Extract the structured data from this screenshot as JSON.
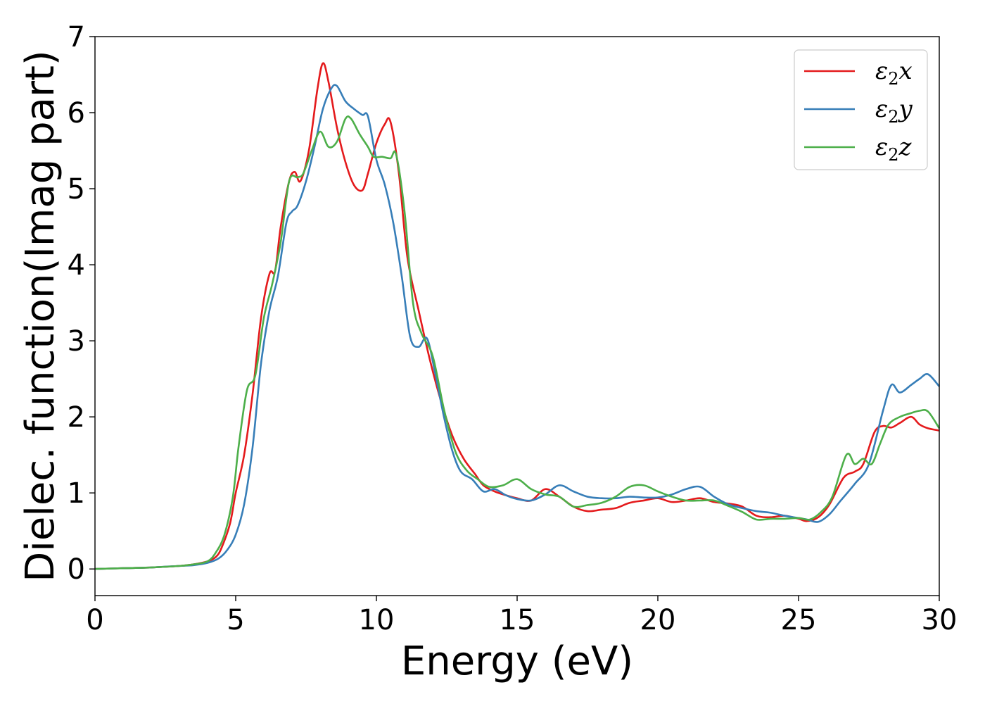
{
  "chart_data": {
    "type": "line",
    "title": "",
    "xlabel": "Energy (eV)",
    "ylabel": "Dielec. function(Imag part)",
    "xlim": [
      0,
      30
    ],
    "ylim": [
      -0.35,
      7
    ],
    "xticks": [
      0,
      5,
      10,
      15,
      20,
      25,
      30
    ],
    "yticks": [
      0,
      1,
      2,
      3,
      4,
      5,
      6,
      7
    ],
    "xtick_labels": [
      "0",
      "5",
      "10",
      "15",
      "20",
      "25",
      "30"
    ],
    "ytick_labels": [
      "0",
      "1",
      "2",
      "3",
      "4",
      "5",
      "6",
      "7"
    ],
    "grid": false,
    "legend_position": "top-right",
    "series": [
      {
        "name": "ε₂x",
        "label_base": "ε",
        "label_sub": "2",
        "label_var": "x",
        "color": "#e41a1c",
        "x": [
          0,
          1,
          2,
          3,
          3.5,
          4,
          4.3,
          4.5,
          4.8,
          5,
          5.3,
          5.6,
          5.9,
          6.2,
          6.4,
          6.6,
          6.9,
          7.1,
          7.3,
          7.6,
          7.9,
          8.1,
          8.3,
          8.6,
          8.9,
          9.2,
          9.5,
          9.7,
          10,
          10.3,
          10.5,
          10.8,
          11.1,
          11.5,
          11.9,
          12.3,
          12.7,
          13.1,
          13.5,
          13.8,
          14.2,
          14.6,
          15,
          15.5,
          16,
          16.5,
          17,
          17.5,
          18,
          18.5,
          19,
          19.5,
          20,
          20.5,
          21,
          21.5,
          22,
          22.5,
          23,
          23.5,
          24,
          24.5,
          25,
          25.3,
          25.7,
          26.1,
          26.6,
          27,
          27.3,
          27.7,
          28,
          28.3,
          28.6,
          29,
          29.3,
          29.6,
          30
        ],
        "y": [
          0,
          0.01,
          0.02,
          0.04,
          0.06,
          0.1,
          0.16,
          0.28,
          0.6,
          1.0,
          1.5,
          2.3,
          3.3,
          3.88,
          3.92,
          4.5,
          5.1,
          5.22,
          5.1,
          5.5,
          6.3,
          6.65,
          6.4,
          5.8,
          5.35,
          5.05,
          4.98,
          5.2,
          5.6,
          5.85,
          5.88,
          5.2,
          4.1,
          3.4,
          2.75,
          2.2,
          1.75,
          1.45,
          1.25,
          1.1,
          1.02,
          0.97,
          0.93,
          0.9,
          1.05,
          0.95,
          0.82,
          0.76,
          0.78,
          0.8,
          0.87,
          0.9,
          0.93,
          0.88,
          0.9,
          0.93,
          0.88,
          0.86,
          0.82,
          0.7,
          0.68,
          0.7,
          0.66,
          0.63,
          0.68,
          0.85,
          1.2,
          1.28,
          1.38,
          1.8,
          1.88,
          1.86,
          1.92,
          2.0,
          1.9,
          1.85,
          1.82
        ]
      },
      {
        "name": "ε₂y",
        "label_base": "ε",
        "label_sub": "2",
        "label_var": "y",
        "color": "#377eb8",
        "x": [
          0,
          1,
          2,
          3,
          3.5,
          4,
          4.4,
          4.7,
          5,
          5.3,
          5.6,
          5.9,
          6.2,
          6.5,
          6.8,
          7,
          7.2,
          7.5,
          7.8,
          8.1,
          8.4,
          8.6,
          8.9,
          9.2,
          9.5,
          9.7,
          10,
          10.3,
          10.6,
          10.9,
          11.2,
          11.5,
          11.8,
          12.1,
          12.4,
          12.7,
          13,
          13.4,
          13.8,
          14.2,
          14.6,
          15,
          15.5,
          16,
          16.5,
          17,
          17.5,
          18,
          18.5,
          19,
          19.5,
          20,
          20.5,
          21,
          21.5,
          22,
          22.5,
          23,
          23.5,
          24,
          24.5,
          25,
          25.3,
          25.7,
          26.1,
          26.5,
          27,
          27.5,
          28,
          28.3,
          28.6,
          29,
          29.3,
          29.6,
          30
        ],
        "y": [
          0,
          0.01,
          0.02,
          0.04,
          0.05,
          0.08,
          0.14,
          0.25,
          0.45,
          0.85,
          1.6,
          2.7,
          3.4,
          3.85,
          4.55,
          4.7,
          4.78,
          5.1,
          5.55,
          6.05,
          6.32,
          6.35,
          6.15,
          6.05,
          5.97,
          5.95,
          5.38,
          5.05,
          4.55,
          3.85,
          3.05,
          2.92,
          3.03,
          2.55,
          2.0,
          1.55,
          1.28,
          1.18,
          1.02,
          1.05,
          0.97,
          0.92,
          0.9,
          0.98,
          1.1,
          1.02,
          0.95,
          0.93,
          0.93,
          0.95,
          0.94,
          0.94,
          0.98,
          1.05,
          1.08,
          0.95,
          0.85,
          0.8,
          0.76,
          0.74,
          0.7,
          0.67,
          0.65,
          0.62,
          0.72,
          0.9,
          1.12,
          1.38,
          2.08,
          2.42,
          2.32,
          2.42,
          2.5,
          2.56,
          2.4
        ]
      },
      {
        "name": "ε₂z",
        "label_base": "ε",
        "label_sub": "2",
        "label_var": "z",
        "color": "#4daf4a",
        "x": [
          0,
          1,
          2,
          3,
          3.5,
          4,
          4.3,
          4.6,
          4.9,
          5.1,
          5.4,
          5.7,
          6,
          6.3,
          6.6,
          6.9,
          7.2,
          7.4,
          7.7,
          8,
          8.3,
          8.6,
          8.9,
          9.1,
          9.4,
          9.7,
          9.9,
          10.2,
          10.5,
          10.7,
          11,
          11.3,
          11.6,
          12,
          12.4,
          12.8,
          13.2,
          13.6,
          14,
          14.5,
          15,
          15.5,
          16,
          16.5,
          17,
          17.5,
          18,
          18.5,
          19,
          19.5,
          20,
          20.5,
          21,
          21.5,
          22,
          22.5,
          23,
          23.5,
          24,
          24.5,
          25,
          25.4,
          25.8,
          26.2,
          26.7,
          27,
          27.3,
          27.6,
          27.9,
          28.2,
          28.6,
          29,
          29.3,
          29.6,
          30
        ],
        "y": [
          0,
          0.01,
          0.02,
          0.04,
          0.06,
          0.1,
          0.22,
          0.45,
          0.95,
          1.6,
          2.35,
          2.55,
          3.3,
          3.75,
          4.3,
          5.1,
          5.15,
          5.2,
          5.5,
          5.75,
          5.55,
          5.62,
          5.92,
          5.92,
          5.72,
          5.55,
          5.42,
          5.42,
          5.4,
          5.45,
          4.7,
          3.5,
          3.1,
          2.8,
          2.1,
          1.55,
          1.3,
          1.18,
          1.08,
          1.1,
          1.18,
          1.05,
          0.98,
          0.95,
          0.82,
          0.84,
          0.87,
          0.95,
          1.08,
          1.1,
          1.02,
          0.95,
          0.9,
          0.9,
          0.9,
          0.83,
          0.75,
          0.65,
          0.66,
          0.66,
          0.67,
          0.65,
          0.75,
          0.95,
          1.5,
          1.38,
          1.45,
          1.38,
          1.65,
          1.9,
          2.0,
          2.05,
          2.08,
          2.07,
          1.85
        ]
      }
    ]
  }
}
